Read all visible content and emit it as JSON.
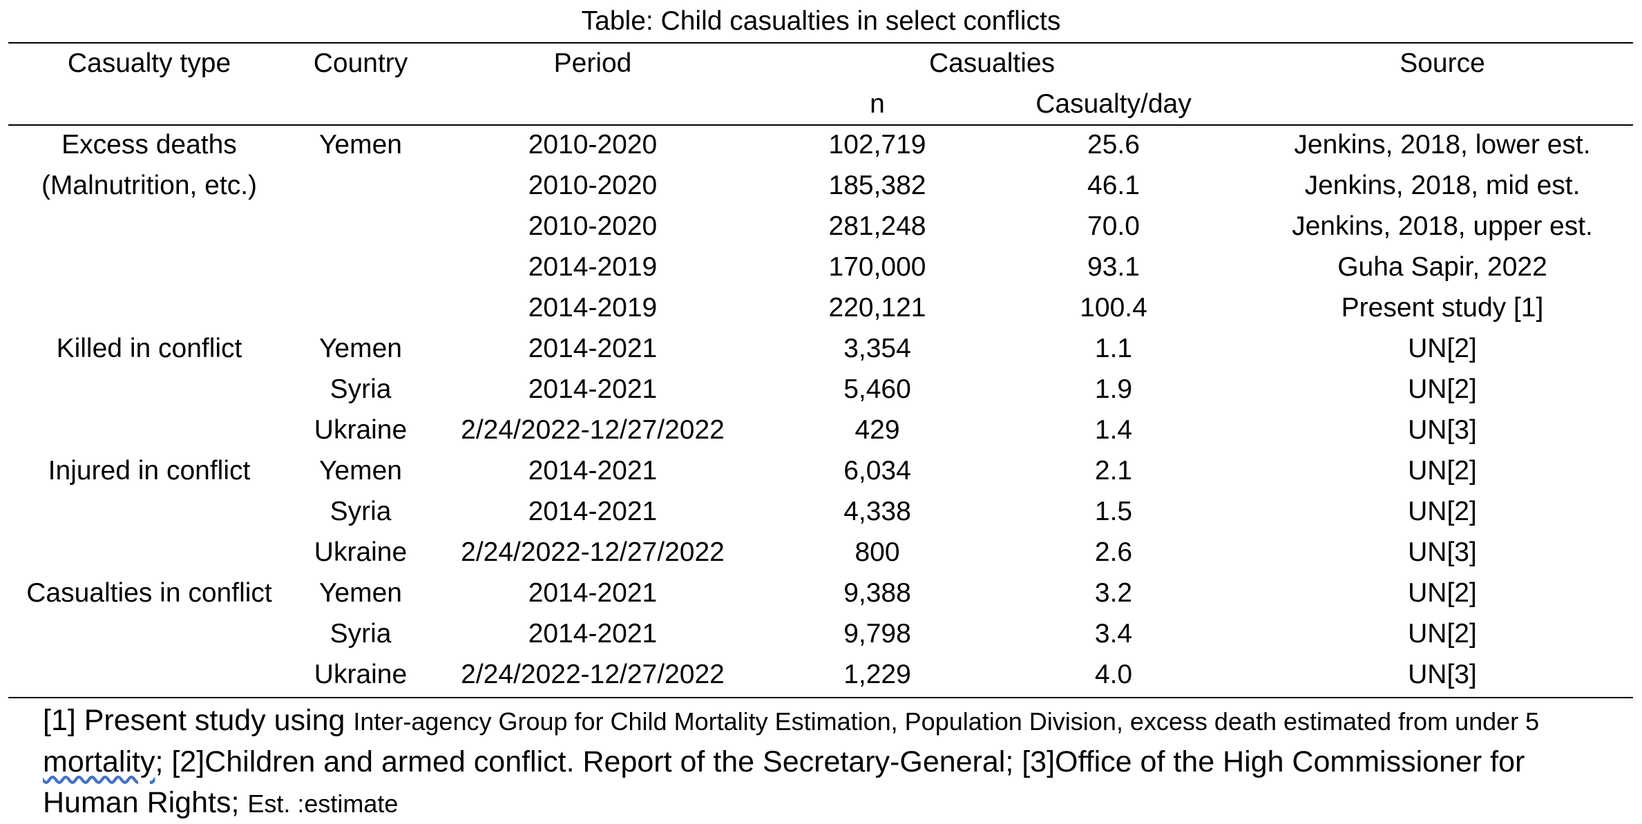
{
  "title": "Table: Child casualties in select conflicts",
  "headers": {
    "casualty_type": "Casualty type",
    "country": "Country",
    "period": "Period",
    "casualties": "Casualties",
    "n": "n",
    "casualty_per_day": "Casualty/day",
    "source": "Source"
  },
  "rows": [
    {
      "type": "Excess deaths",
      "country": "Yemen",
      "period": "2010-2020",
      "n": "102,719",
      "per_day": "25.6",
      "source": "Jenkins, 2018, lower est."
    },
    {
      "type": "(Malnutrition, etc.)",
      "country": "",
      "period": "2010-2020",
      "n": "185,382",
      "per_day": "46.1",
      "source": "Jenkins, 2018, mid est."
    },
    {
      "type": "",
      "country": "",
      "period": "2010-2020",
      "n": "281,248",
      "per_day": "70.0",
      "source": "Jenkins, 2018, upper est."
    },
    {
      "type": "",
      "country": "",
      "period": "2014-2019",
      "n": "170,000",
      "per_day": "93.1",
      "source": "Guha Sapir, 2022"
    },
    {
      "type": "",
      "country": "",
      "period": "2014-2019",
      "n": "220,121",
      "per_day": "100.4",
      "source": "Present study [1]"
    },
    {
      "type": "Killed in conflict",
      "country": "Yemen",
      "period": "2014-2021",
      "n": "3,354",
      "per_day": "1.1",
      "source": "UN[2]"
    },
    {
      "type": "",
      "country": "Syria",
      "period": "2014-2021",
      "n": "5,460",
      "per_day": "1.9",
      "source": "UN[2]"
    },
    {
      "type": "",
      "country": "Ukraine",
      "period": "2/24/2022-12/27/2022",
      "n": "429",
      "per_day": "1.4",
      "source": "UN[3]"
    },
    {
      "type": "Injured in conflict",
      "country": "Yemen",
      "period": "2014-2021",
      "n": "6,034",
      "per_day": "2.1",
      "source": "UN[2]"
    },
    {
      "type": "",
      "country": "Syria",
      "period": "2014-2021",
      "n": "4,338",
      "per_day": "1.5",
      "source": "UN[2]"
    },
    {
      "type": "",
      "country": "Ukraine",
      "period": "2/24/2022-12/27/2022",
      "n": "800",
      "per_day": "2.6",
      "source": "UN[3]"
    },
    {
      "type": "Casualties in conflict",
      "country": "Yemen",
      "period": "2014-2021",
      "n": "9,388",
      "per_day": "3.2",
      "source": "UN[2]"
    },
    {
      "type": "",
      "country": "Syria",
      "period": "2014-2021",
      "n": "9,798",
      "per_day": "3.4",
      "source": "UN[2]"
    },
    {
      "type": "",
      "country": "Ukraine",
      "period": "2/24/2022-12/27/2022",
      "n": "1,229",
      "per_day": "4.0",
      "source": "UN[3]"
    }
  ],
  "footnote": {
    "part1": "[1] Present study using ",
    "part2": "Inter-agency Group for Child Mortality Estimation, Population Division, excess death estimated from under 5 ",
    "part3": "mortality",
    "part4": "; [2]Children and armed conflict. Report of the Secretary-General; [3]Office of the High Commissioner for Human Rights; ",
    "part5": "Est. :estimate"
  }
}
